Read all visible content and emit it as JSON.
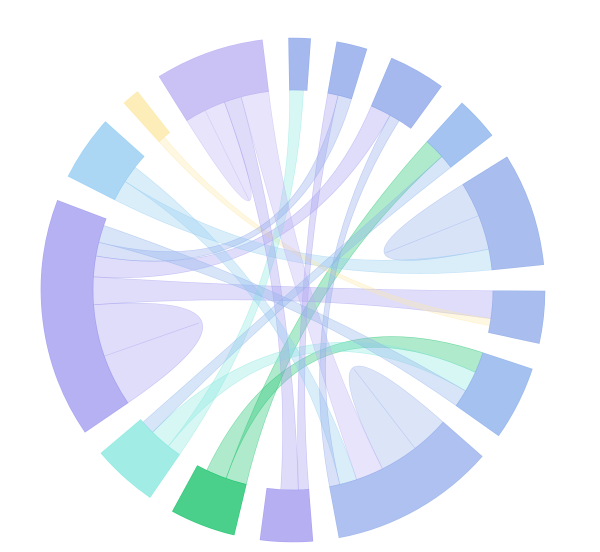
{
  "chart_data": {
    "type": "chord",
    "groups": [
      {
        "value": 5,
        "color": "#8fa8ea"
      },
      {
        "value": 7,
        "color": "#8fa8ea"
      },
      {
        "value": 13,
        "color": "#8fa8ea"
      },
      {
        "value": 10,
        "color": "#8db4ec"
      },
      {
        "value": 26,
        "color": "#93aeea"
      },
      {
        "value": 12,
        "color": "#93aeea"
      },
      {
        "value": 17,
        "color": "#8eb2ec"
      },
      {
        "value": 38,
        "color": "#9ab2ec"
      },
      {
        "value": 12,
        "color": "#a49cef"
      },
      {
        "value": 15,
        "color": "#1ec46e"
      },
      {
        "value": 15,
        "color": "#8ae8e0"
      },
      {
        "value": 55,
        "color": "#a39df0"
      },
      {
        "value": 15,
        "color": "#96cdf2"
      },
      {
        "value": 4,
        "color": "#fde8a8"
      },
      {
        "value": 25,
        "color": "#bdb2f3"
      }
    ],
    "ribbons": [
      {
        "source": 11,
        "target": 11,
        "value": 15
      },
      {
        "source": 7,
        "target": 7,
        "value": 11
      },
      {
        "source": 4,
        "target": 4,
        "value": 10
      },
      {
        "source": 14,
        "target": 14,
        "value": 6
      },
      {
        "source": 9,
        "target": 3,
        "value": 6
      },
      {
        "source": 9,
        "target": 6,
        "value": 6
      },
      {
        "source": 11,
        "target": 5,
        "value": 8
      },
      {
        "source": 11,
        "target": 2,
        "value": 6
      },
      {
        "source": 12,
        "target": 4,
        "value": 6
      },
      {
        "source": 13,
        "target": 5,
        "value": 2
      },
      {
        "source": 10,
        "target": 0,
        "value": 4
      },
      {
        "source": 10,
        "target": 6,
        "value": 6
      },
      {
        "source": 8,
        "target": 1,
        "value": 3
      },
      {
        "source": 8,
        "target": 14,
        "value": 5
      },
      {
        "source": 14,
        "target": 7,
        "value": 8
      },
      {
        "source": 12,
        "target": 7,
        "value": 5
      },
      {
        "source": 2,
        "target": 7,
        "value": 3
      },
      {
        "source": 1,
        "target": 11,
        "value": 4
      },
      {
        "source": 3,
        "target": 10,
        "value": 4
      },
      {
        "source": 6,
        "target": 11,
        "value": 5
      }
    ]
  }
}
